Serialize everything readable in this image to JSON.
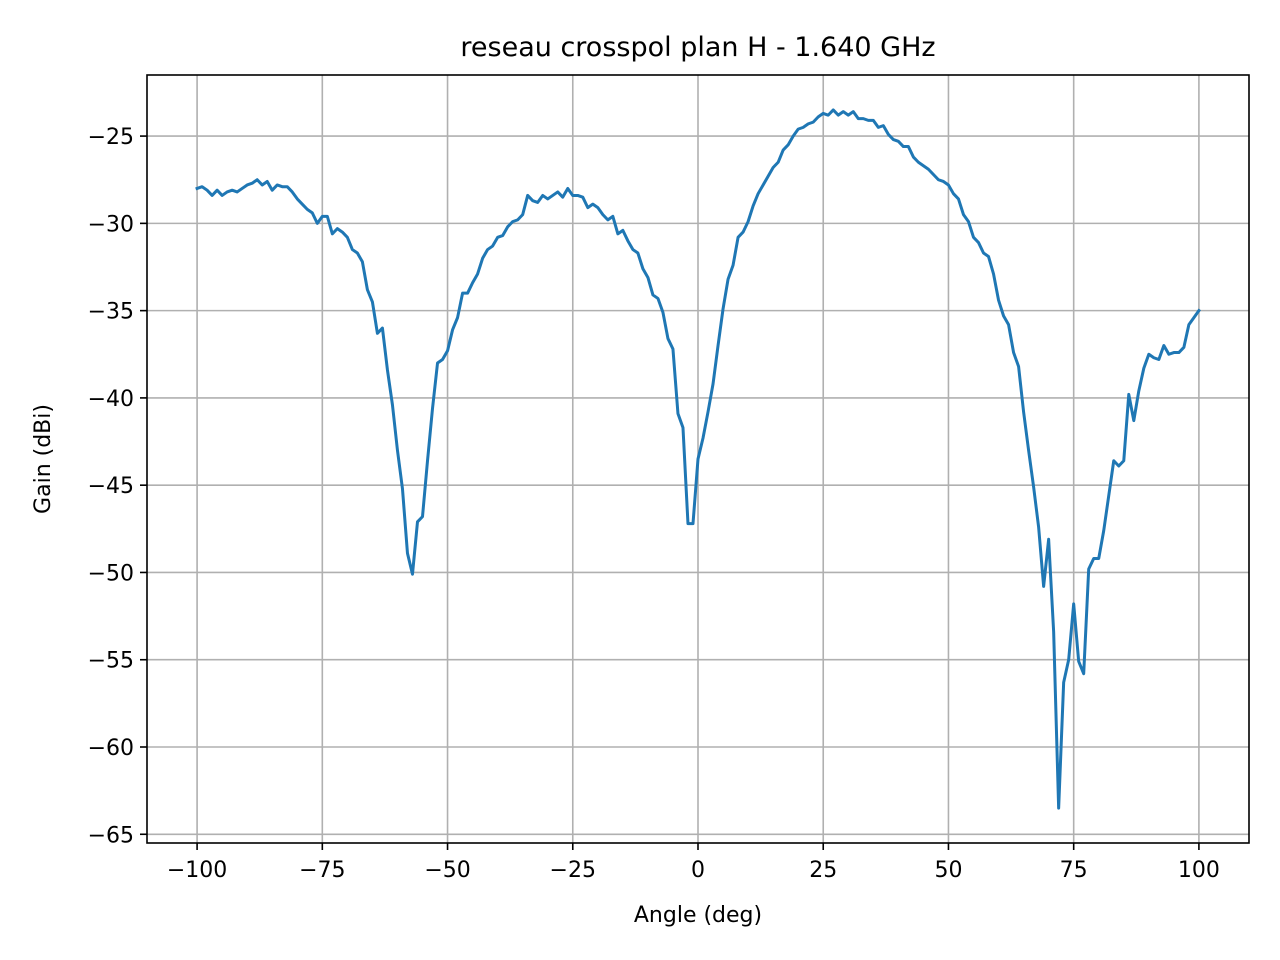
{
  "chart_data": {
    "type": "line",
    "title": "reseau crosspol plan H - 1.640 GHz",
    "xlabel": "Angle (deg)",
    "ylabel": "Gain (dBi)",
    "xlim": [
      -110,
      110
    ],
    "ylim": [
      -65.5,
      -21.5
    ],
    "xticks": [
      -100,
      -75,
      -50,
      -25,
      0,
      25,
      50,
      75,
      100
    ],
    "xtick_labels": [
      "−100",
      "−75",
      "−50",
      "−25",
      "0",
      "25",
      "50",
      "75",
      "100"
    ],
    "yticks": [
      -25,
      -30,
      -35,
      -40,
      -45,
      -50,
      -55,
      -60,
      -65
    ],
    "ytick_labels": [
      "−25",
      "−30",
      "−35",
      "−40",
      "−45",
      "−50",
      "−55",
      "−60",
      "−65"
    ],
    "grid": true,
    "line_color": "#1f77b4",
    "series": [
      {
        "x": [
          -100,
          -99,
          -98,
          -97,
          -96,
          -95,
          -94,
          -93,
          -92,
          -91,
          -90,
          -89,
          -88,
          -87,
          -86,
          -85,
          -84,
          -83,
          -82,
          -81,
          -80,
          -79,
          -78,
          -77,
          -76,
          -75,
          -74,
          -73,
          -72,
          -71,
          -70,
          -69,
          -68,
          -67,
          -66,
          -65,
          -64,
          -63,
          -62,
          -61,
          -60,
          -59,
          -58,
          -57,
          -56,
          -55,
          -54,
          -53,
          -52,
          -51,
          -50,
          -49,
          -48,
          -47,
          -46,
          -45,
          -44,
          -43,
          -42,
          -41,
          -40,
          -39,
          -38,
          -37,
          -36,
          -35,
          -34,
          -33,
          -32,
          -31,
          -30,
          -29,
          -28,
          -27,
          -26,
          -25,
          -24,
          -23,
          -22,
          -21,
          -20,
          -19,
          -18,
          -17,
          -16,
          -15,
          -14,
          -13,
          -12,
          -11,
          -10,
          -9,
          -8,
          -7,
          -6,
          -5,
          -4,
          -3,
          -2,
          -1,
          0,
          1,
          2,
          3,
          4,
          5,
          6,
          7,
          8,
          9,
          10,
          11,
          12,
          13,
          14,
          15,
          16,
          17,
          18,
          19,
          20,
          21,
          22,
          23,
          24,
          25,
          26,
          27,
          28,
          29,
          30,
          31,
          32,
          33,
          34,
          35,
          36,
          37,
          38,
          39,
          40,
          41,
          42,
          43,
          44,
          45,
          46,
          47,
          48,
          49,
          50,
          51,
          52,
          53,
          54,
          55,
          56,
          57,
          58,
          59,
          60,
          61,
          62,
          63,
          64,
          65,
          66,
          67,
          68,
          69,
          70,
          71,
          72,
          73,
          74,
          75,
          76,
          77,
          78,
          79,
          80,
          81,
          82,
          83,
          84,
          85,
          86,
          87,
          88,
          89,
          90,
          91,
          92,
          93,
          94,
          95,
          96,
          97,
          98,
          99,
          100
        ],
        "y": [
          -28.0,
          -27.9,
          -28.1,
          -28.4,
          -28.1,
          -28.4,
          -28.2,
          -28.1,
          -28.2,
          -28.0,
          -27.8,
          -27.7,
          -27.5,
          -27.8,
          -27.6,
          -28.1,
          -27.8,
          -27.9,
          -27.9,
          -28.2,
          -28.6,
          -28.9,
          -29.2,
          -29.4,
          -30.0,
          -29.6,
          -29.6,
          -30.6,
          -30.3,
          -30.5,
          -30.8,
          -31.5,
          -31.7,
          -32.2,
          -33.8,
          -34.5,
          -36.3,
          -36.0,
          -38.4,
          -40.4,
          -43.0,
          -45.2,
          -48.9,
          -50.1,
          -47.1,
          -46.8,
          -43.6,
          -40.6,
          -38.0,
          -37.8,
          -37.3,
          -36.1,
          -35.4,
          -34.0,
          -34.0,
          -33.4,
          -32.9,
          -32.0,
          -31.5,
          -31.3,
          -30.8,
          -30.7,
          -30.2,
          -29.9,
          -29.8,
          -29.5,
          -28.4,
          -28.7,
          -28.8,
          -28.4,
          -28.6,
          -28.4,
          -28.2,
          -28.5,
          -28.0,
          -28.4,
          -28.4,
          -28.5,
          -29.1,
          -28.9,
          -29.1,
          -29.5,
          -29.8,
          -29.6,
          -30.6,
          -30.4,
          -31.0,
          -31.5,
          -31.7,
          -32.6,
          -33.1,
          -34.1,
          -34.3,
          -35.1,
          -36.6,
          -37.2,
          -40.9,
          -41.7,
          -47.2,
          -47.2,
          -43.5,
          -42.3,
          -40.8,
          -39.2,
          -37.0,
          -34.9,
          -33.2,
          -32.4,
          -30.8,
          -30.5,
          -29.9,
          -29.0,
          -28.3,
          -27.8,
          -27.3,
          -26.8,
          -26.5,
          -25.8,
          -25.5,
          -25.0,
          -24.6,
          -24.5,
          -24.3,
          -24.2,
          -23.9,
          -23.7,
          -23.8,
          -23.5,
          -23.8,
          -23.6,
          -23.8,
          -23.6,
          -24.0,
          -24.0,
          -24.1,
          -24.1,
          -24.5,
          -24.4,
          -24.9,
          -25.2,
          -25.3,
          -25.6,
          -25.6,
          -26.2,
          -26.5,
          -26.7,
          -26.9,
          -27.2,
          -27.5,
          -27.6,
          -27.8,
          -28.3,
          -28.6,
          -29.5,
          -29.9,
          -30.8,
          -31.1,
          -31.7,
          -31.9,
          -32.9,
          -34.4,
          -35.3,
          -35.8,
          -37.4,
          -38.2,
          -40.8,
          -43.0,
          -45.1,
          -47.4,
          -50.8,
          -48.1,
          -53.4,
          -63.5,
          -56.3,
          -55.0,
          -51.8,
          -55.1,
          -55.8,
          -49.8,
          -49.2,
          -49.2,
          -47.6,
          -45.6,
          -43.6,
          -43.9,
          -43.6,
          -39.8,
          -41.3,
          -39.6,
          -38.3,
          -37.5,
          -37.7,
          -37.8,
          -37.0,
          -37.5,
          -37.4,
          -37.4,
          -37.1,
          -35.8,
          -35.4,
          -35.0
        ]
      }
    ]
  }
}
